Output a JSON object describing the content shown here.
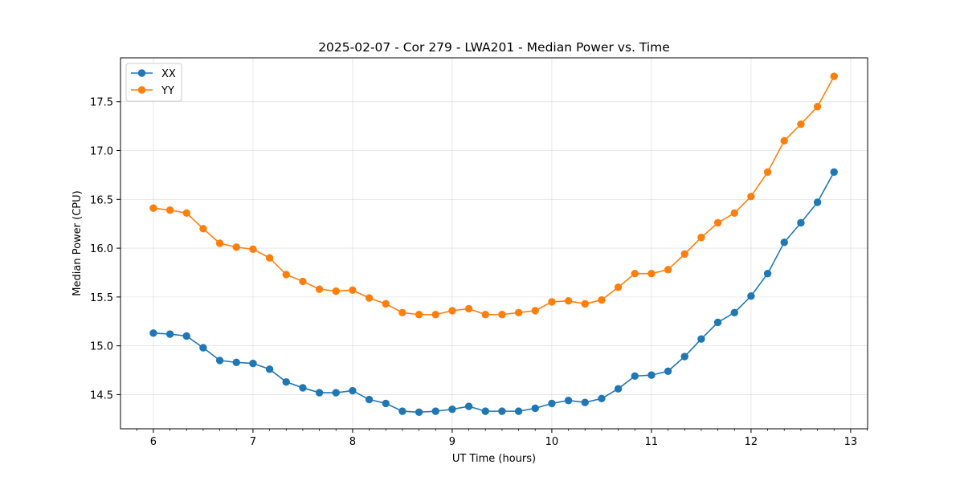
{
  "chart_data": {
    "type": "line",
    "title": "2025-02-07 - Cor 279 - LWA201 - Median Power vs. Time",
    "xlabel": "UT Time (hours)",
    "ylabel": "Median Power (CPU)",
    "xlim": [
      5.67,
      13.17
    ],
    "ylim": [
      14.15,
      17.95
    ],
    "xticks": [
      6,
      7,
      8,
      9,
      10,
      11,
      12,
      13
    ],
    "yticks": [
      14.5,
      15.0,
      15.5,
      16.0,
      16.5,
      17.0,
      17.5
    ],
    "ytick_labels": [
      "14.5",
      "15.0",
      "15.5",
      "16.0",
      "16.5",
      "17.0",
      "17.5"
    ],
    "grid": true,
    "legend_position": "top-left",
    "x": [
      6.0,
      6.1667,
      6.3333,
      6.5,
      6.6667,
      6.8333,
      7.0,
      7.1667,
      7.3333,
      7.5,
      7.6667,
      7.8333,
      8.0,
      8.1667,
      8.3333,
      8.5,
      8.6667,
      8.8333,
      9.0,
      9.1667,
      9.3333,
      9.5,
      9.6667,
      9.8333,
      10.0,
      10.1667,
      10.3333,
      10.5,
      10.6667,
      10.8333,
      11.0,
      11.1667,
      11.3333,
      11.5,
      11.6667,
      11.8333,
      12.0,
      12.1667,
      12.3333,
      12.5,
      12.6667,
      12.8333
    ],
    "series": [
      {
        "name": "XX",
        "color": "#1f77b4",
        "values": [
          15.13,
          15.12,
          15.1,
          14.98,
          14.85,
          14.83,
          14.82,
          14.76,
          14.63,
          14.57,
          14.52,
          14.52,
          14.54,
          14.45,
          14.41,
          14.33,
          14.32,
          14.33,
          14.35,
          14.38,
          14.33,
          14.33,
          14.33,
          14.36,
          14.41,
          14.44,
          14.42,
          14.46,
          14.56,
          14.69,
          14.7,
          14.74,
          14.89,
          15.07,
          15.24,
          15.34,
          15.51,
          15.74,
          16.06,
          16.26,
          16.47,
          16.78
        ]
      },
      {
        "name": "YY",
        "color": "#ff7f0e",
        "values": [
          16.41,
          16.39,
          16.36,
          16.2,
          16.05,
          16.01,
          15.99,
          15.9,
          15.73,
          15.66,
          15.58,
          15.56,
          15.57,
          15.49,
          15.43,
          15.34,
          15.32,
          15.32,
          15.36,
          15.38,
          15.32,
          15.32,
          15.34,
          15.36,
          15.45,
          15.46,
          15.43,
          15.47,
          15.6,
          15.74,
          15.74,
          15.78,
          15.94,
          16.11,
          16.26,
          16.36,
          16.53,
          16.78,
          17.1,
          17.27,
          17.45,
          17.76
        ]
      }
    ]
  }
}
